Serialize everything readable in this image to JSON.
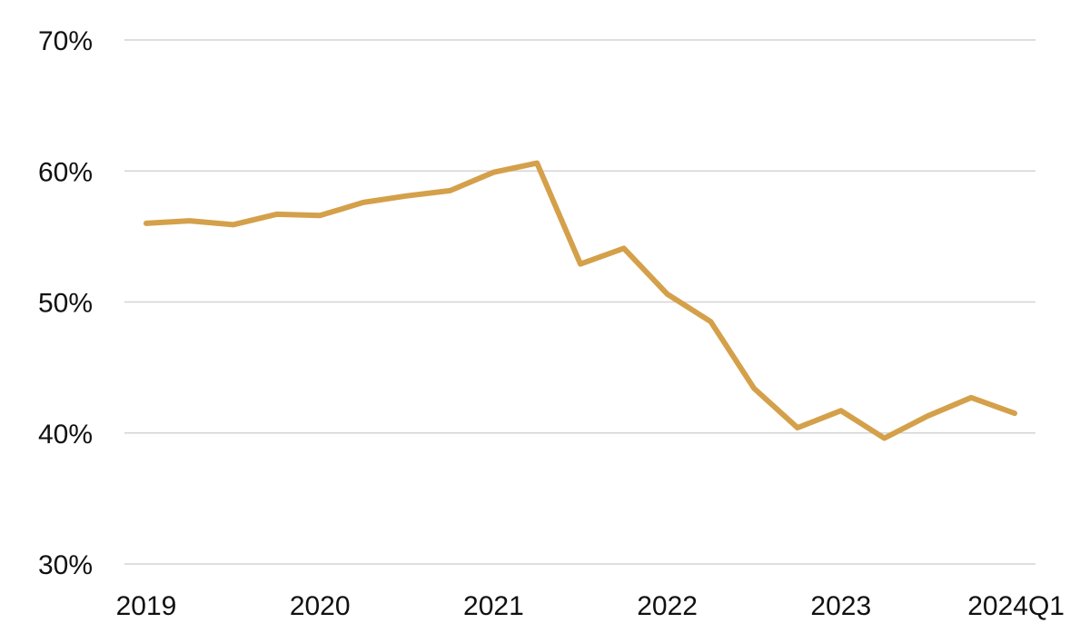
{
  "chart_data": {
    "type": "line",
    "x": [
      "2019Q1",
      "2019Q2",
      "2019Q3",
      "2019Q4",
      "2020Q1",
      "2020Q2",
      "2020Q3",
      "2020Q4",
      "2021Q1",
      "2021Q2",
      "2021Q3",
      "2021Q4",
      "2022Q1",
      "2022Q2",
      "2022Q3",
      "2022Q4",
      "2023Q1",
      "2023Q2",
      "2023Q3",
      "2023Q4",
      "2024Q1"
    ],
    "x_tick_labels": [
      {
        "label": "2019",
        "index": 0
      },
      {
        "label": "2020",
        "index": 4
      },
      {
        "label": "2021",
        "index": 8
      },
      {
        "label": "2022",
        "index": 12
      },
      {
        "label": "2023",
        "index": 16
      },
      {
        "label": "2024Q1",
        "index": 20
      }
    ],
    "series": [
      {
        "color": "#D4A04A",
        "values": [
          56.0,
          56.2,
          55.9,
          56.7,
          56.6,
          57.6,
          58.1,
          58.5,
          59.9,
          60.6,
          52.9,
          54.1,
          50.6,
          48.5,
          43.4,
          40.4,
          41.7,
          39.6,
          41.3,
          42.7,
          41.5
        ]
      }
    ],
    "ylim": [
      30,
      70
    ],
    "yticks": [
      30,
      40,
      50,
      60,
      70
    ],
    "ytick_labels": [
      "30%",
      "40%",
      "50%",
      "60%",
      "70%"
    ],
    "grid": true,
    "title": "",
    "xlabel": "",
    "ylabel": ""
  }
}
